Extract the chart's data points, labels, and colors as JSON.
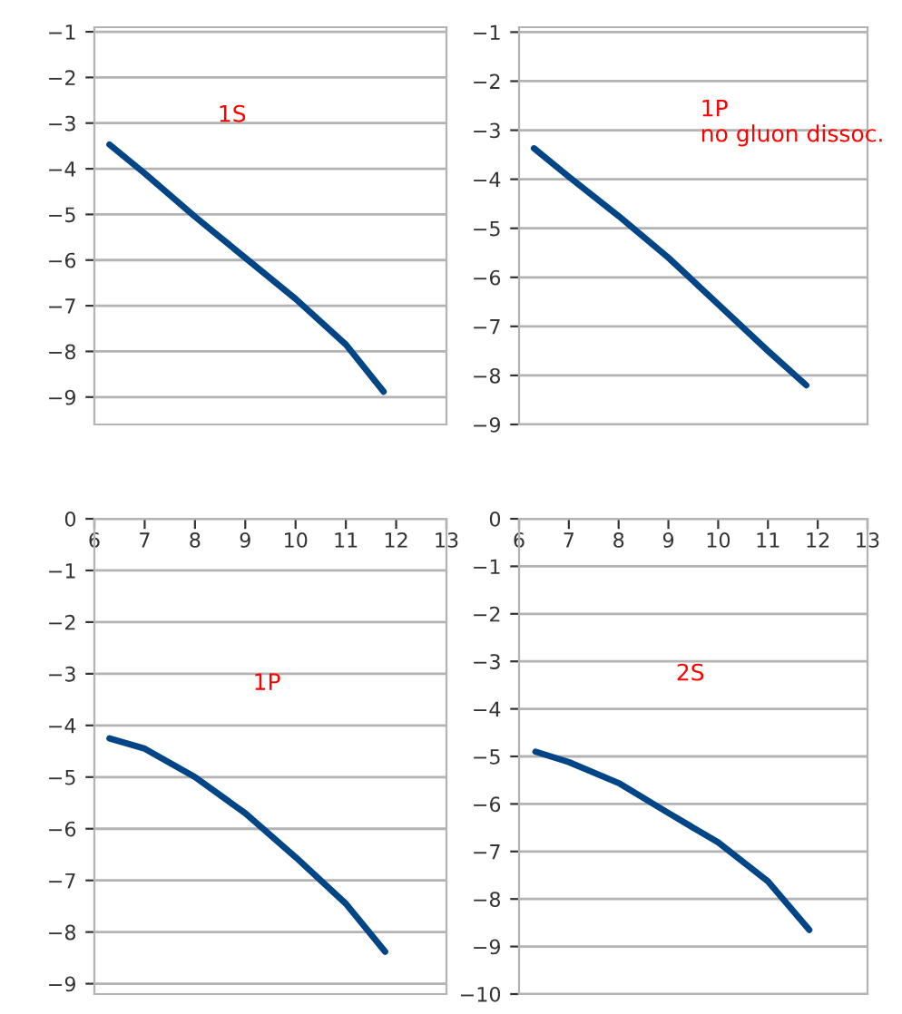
{
  "chart_data": [
    {
      "type": "line",
      "annotations": [
        "1S"
      ],
      "x": [
        6.3,
        7,
        8,
        9,
        10,
        11,
        11.75
      ],
      "values": [
        -3.47,
        -4.1,
        -5.05,
        -5.95,
        -6.85,
        -7.85,
        -8.88
      ],
      "color": "#004586",
      "xlim": [
        6,
        13
      ],
      "ylim": [
        -9.6,
        -0.9
      ],
      "yticks": [
        -9,
        -8,
        -7,
        -6,
        -5,
        -4,
        -3,
        -2,
        -1
      ],
      "grid": "y",
      "tick_labels": "y"
    },
    {
      "type": "line",
      "annotations": [
        "1P\nno gluon dissoc."
      ],
      "x": [
        6.3,
        7,
        8,
        9,
        10,
        11,
        11.77
      ],
      "values": [
        -3.37,
        -3.95,
        -4.75,
        -5.6,
        -6.55,
        -7.5,
        -8.2
      ],
      "color": "#004586",
      "xlim": [
        6,
        13
      ],
      "ylim": [
        -9,
        -0.9
      ],
      "yticks": [
        -9,
        -8,
        -7,
        -6,
        -5,
        -4,
        -3,
        -2,
        -1
      ],
      "grid": "y",
      "tick_labels": "y"
    },
    {
      "type": "line",
      "annotations": [
        "1P"
      ],
      "x": [
        6.3,
        7,
        8,
        9,
        10,
        11,
        11.78
      ],
      "values": [
        -4.25,
        -4.45,
        -5.0,
        -5.7,
        -6.55,
        -7.45,
        -8.38
      ],
      "color": "#004586",
      "xlim": [
        6,
        13
      ],
      "xticks": [
        6,
        7,
        8,
        9,
        10,
        11,
        12,
        13
      ],
      "ylim": [
        -9.2,
        0
      ],
      "yticks": [
        -9,
        -8,
        -7,
        -6,
        -5,
        -4,
        -3,
        -2,
        -1,
        0
      ],
      "grid": "y"
    },
    {
      "type": "line",
      "annotations": [
        "2S"
      ],
      "x": [
        6.33,
        7,
        8,
        9,
        10,
        11,
        11.83
      ],
      "values": [
        -4.9,
        -5.12,
        -5.56,
        -6.19,
        -6.81,
        -7.63,
        -8.65
      ],
      "color": "#004586",
      "xlim": [
        6,
        13
      ],
      "xticks": [
        6,
        7,
        8,
        9,
        10,
        11,
        12,
        13
      ],
      "ylim": [
        -10,
        0
      ],
      "yticks": [
        -10,
        -9,
        -8,
        -7,
        -6,
        -5,
        -4,
        -3,
        -2,
        -1,
        0
      ],
      "grid": "y"
    }
  ]
}
